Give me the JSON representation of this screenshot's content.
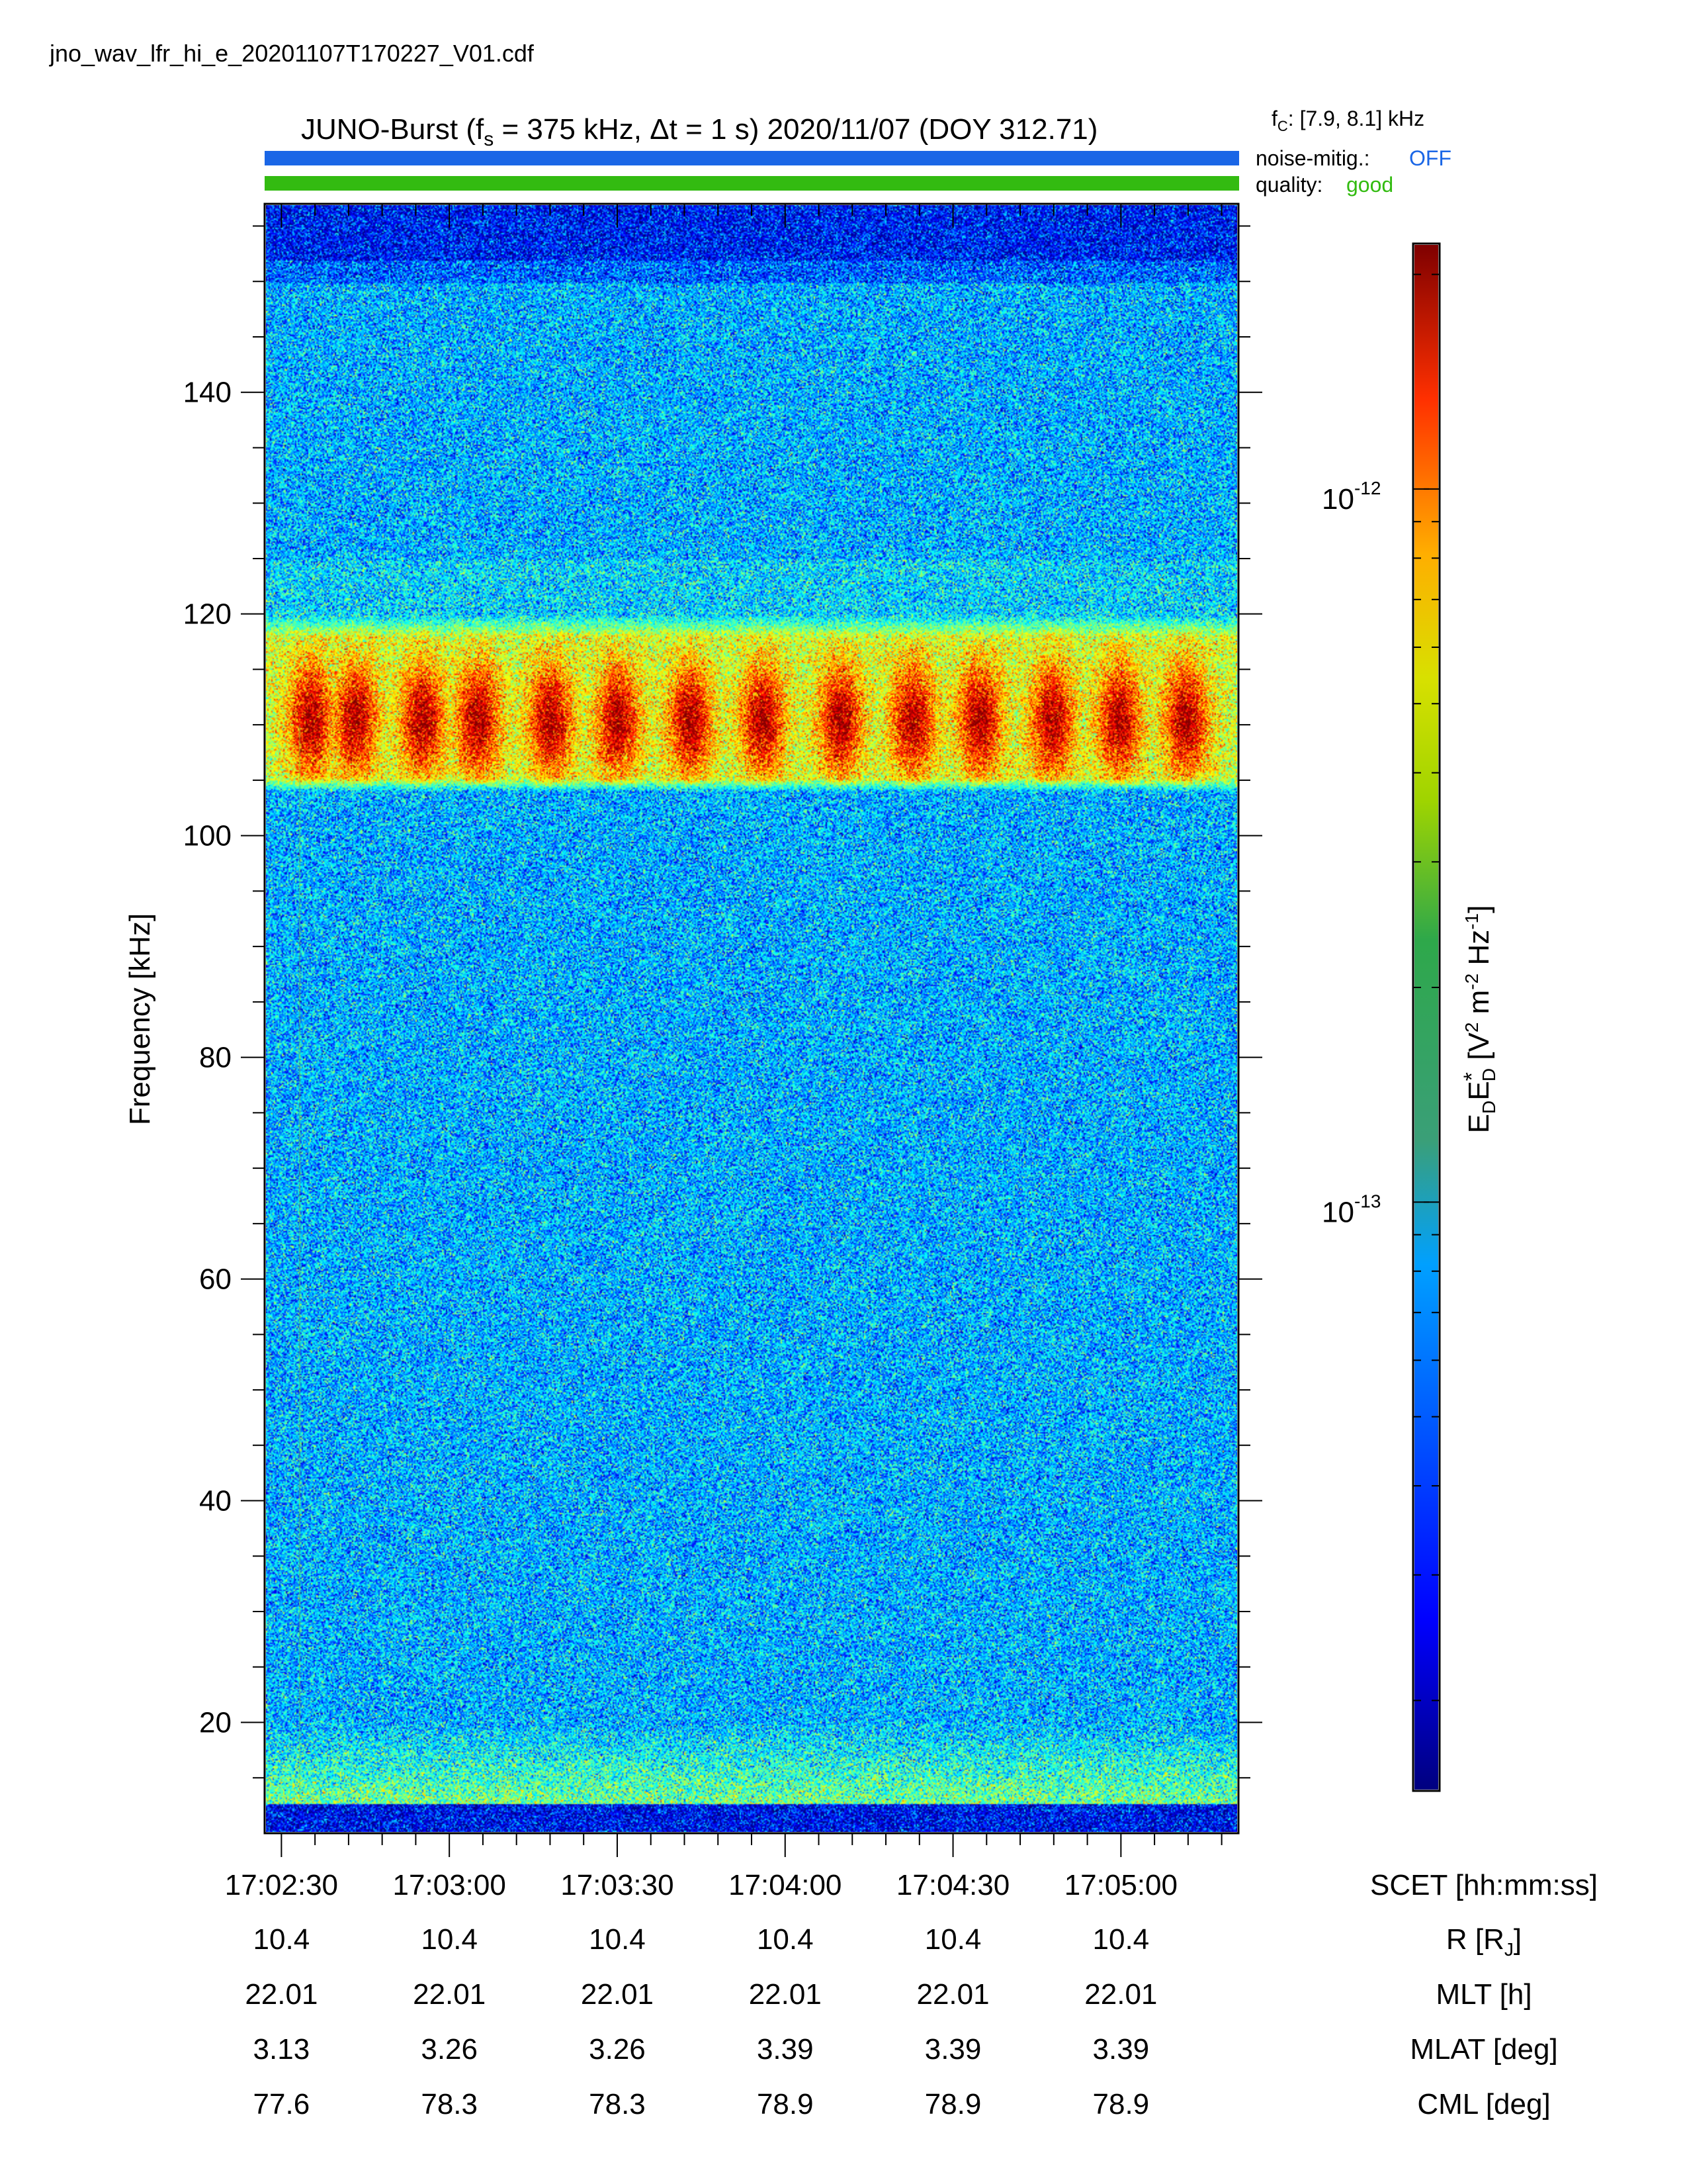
{
  "filename": "jno_wav_lfr_hi_e_20201107T170227_V01.cdf",
  "header": {
    "title_prefix": "JUNO-Burst (f",
    "title_fs_sub": "s",
    "title_fs_value": " = 375 kHz, Δt = 1 s)  2020/11/07 (DOY 312.71)",
    "fc_prefix": "f",
    "fc_sub": "C",
    "fc_value": ": [7.9, 8.1] kHz",
    "noise_label": "noise-mitig.:",
    "noise_value": "OFF",
    "quality_label": "quality:",
    "quality_value": "good"
  },
  "colors": {
    "noise_bar": "#1a66e6",
    "noise_value": "#1a66e6",
    "quality_bar": "#33bb11",
    "quality_value": "#33bb11"
  },
  "chart_data": {
    "type": "heatmap",
    "ylabel": "Frequency [kHz]",
    "ylim": [
      10,
      157
    ],
    "yticks": [
      20,
      40,
      60,
      80,
      100,
      120,
      140
    ],
    "xlim": [
      "17:02:27",
      "17:05:21"
    ],
    "xticks": [
      "17:02:30",
      "17:03:00",
      "17:03:30",
      "17:04:00",
      "17:04:30",
      "17:05:00"
    ],
    "colormap": "jet",
    "colorbar": {
      "scale": "log",
      "label_main": "E",
      "label_sub1": "D",
      "label_main2": "E",
      "label_star": "*",
      "label_sub2": "D",
      "label_unit": " [V",
      "label_sup1": "2",
      "label_unit2": " m",
      "label_sup2": "-2",
      "label_unit3": " Hz",
      "label_sup3": "-1",
      "label_end": "]",
      "ticks": [
        {
          "base": "10",
          "exp": "-12",
          "value": 1e-12
        },
        {
          "base": "10",
          "exp": "-13",
          "value": 1e-13
        }
      ],
      "range": [
        1.5e-14,
        2.2e-12
      ]
    },
    "features": {
      "emission_band_khz": [
        104,
        118
      ],
      "burst_times": [
        "17:02:35",
        "17:02:43",
        "17:02:55",
        "17:03:05",
        "17:03:18",
        "17:03:30",
        "17:03:43",
        "17:03:56",
        "17:04:10",
        "17:04:23",
        "17:04:35",
        "17:04:48",
        "17:05:00",
        "17:05:12"
      ]
    },
    "ephemeris": {
      "labels": [
        {
          "main": "SCET [hh:mm:ss]",
          "sub": ""
        },
        {
          "main": "R [R",
          "sub": "J",
          "end": "]"
        },
        {
          "main": "MLT [h]",
          "sub": ""
        },
        {
          "main": "MLAT [deg]",
          "sub": ""
        },
        {
          "main": "CML [deg]",
          "sub": ""
        }
      ],
      "R": [
        "10.4",
        "10.4",
        "10.4",
        "10.4",
        "10.4",
        "10.4"
      ],
      "MLT": [
        "22.01",
        "22.01",
        "22.01",
        "22.01",
        "22.01",
        "22.01"
      ],
      "MLAT": [
        "3.13",
        "3.26",
        "3.26",
        "3.39",
        "3.39",
        "3.39"
      ],
      "CML": [
        "77.6",
        "78.3",
        "78.3",
        "78.9",
        "78.9",
        "78.9"
      ]
    }
  }
}
